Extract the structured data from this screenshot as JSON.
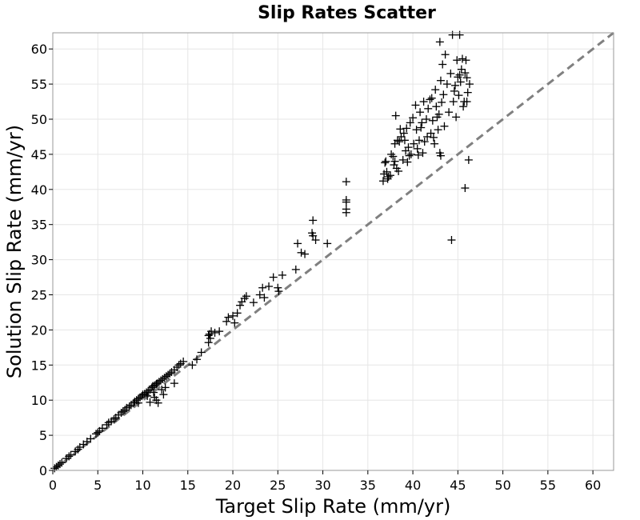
{
  "chart_data": {
    "type": "scatter",
    "title": "Slip Rates Scatter",
    "xlabel": "Target Slip Rate (mm/yr)",
    "ylabel": "Solution Slip Rate (mm/yr)",
    "xlim": [
      0,
      62.3
    ],
    "ylim": [
      0,
      62.3
    ],
    "xticks": [
      0,
      5,
      10,
      15,
      20,
      25,
      30,
      35,
      40,
      45,
      50,
      55,
      60
    ],
    "yticks": [
      0,
      5,
      10,
      15,
      20,
      25,
      30,
      35,
      40,
      45,
      50,
      55,
      60
    ],
    "grid": true,
    "marker": "+",
    "marker_color": "#000000",
    "reference_line": {
      "style": "dashed",
      "color": "#808080",
      "from": [
        0,
        0
      ],
      "to": [
        62.3,
        62.3
      ]
    },
    "points": [
      [
        0.2,
        0.3
      ],
      [
        0.4,
        0.5
      ],
      [
        0.6,
        0.7
      ],
      [
        0.8,
        0.9
      ],
      [
        1.0,
        1.1
      ],
      [
        1.5,
        1.7
      ],
      [
        1.8,
        2.0
      ],
      [
        2.0,
        2.2
      ],
      [
        2.5,
        2.7
      ],
      [
        2.8,
        3.0
      ],
      [
        3.0,
        3.3
      ],
      [
        3.4,
        3.7
      ],
      [
        3.8,
        4.1
      ],
      [
        4.2,
        4.5
      ],
      [
        4.8,
        5.2
      ],
      [
        5.0,
        5.4
      ],
      [
        5.2,
        5.6
      ],
      [
        5.5,
        6.0
      ],
      [
        6.0,
        6.5
      ],
      [
        6.2,
        6.8
      ],
      [
        6.5,
        7.0
      ],
      [
        6.8,
        7.3
      ],
      [
        7.0,
        7.5
      ],
      [
        7.3,
        7.9
      ],
      [
        7.6,
        8.2
      ],
      [
        7.8,
        8.4
      ],
      [
        8.0,
        8.6
      ],
      [
        8.2,
        8.9
      ],
      [
        8.5,
        9.1
      ],
      [
        8.7,
        9.3
      ],
      [
        9.0,
        9.6
      ],
      [
        9.1,
        9.8
      ],
      [
        9.3,
        10.0
      ],
      [
        9.5,
        10.2
      ],
      [
        9.7,
        10.4
      ],
      [
        9.9,
        10.6
      ],
      [
        10.0,
        10.8
      ],
      [
        10.2,
        10.9
      ],
      [
        10.4,
        11.1
      ],
      [
        10.6,
        11.3
      ],
      [
        10.8,
        11.5
      ],
      [
        11.0,
        11.8
      ],
      [
        11.1,
        12.0
      ],
      [
        11.3,
        12.1
      ],
      [
        11.5,
        12.3
      ],
      [
        11.6,
        12.4
      ],
      [
        11.8,
        12.6
      ],
      [
        12.0,
        12.8
      ],
      [
        12.2,
        13.0
      ],
      [
        12.4,
        13.2
      ],
      [
        12.6,
        13.4
      ],
      [
        12.8,
        13.6
      ],
      [
        13.0,
        13.8
      ],
      [
        13.2,
        14.0
      ],
      [
        13.5,
        14.3
      ],
      [
        13.8,
        14.7
      ],
      [
        14.0,
        15.0
      ],
      [
        14.2,
        15.2
      ],
      [
        14.5,
        15.5
      ],
      [
        10.5,
        10.6
      ],
      [
        11.2,
        11.1
      ],
      [
        11.5,
        10.0
      ],
      [
        12.5,
        11.8
      ],
      [
        13.5,
        12.4
      ],
      [
        9.5,
        9.6
      ],
      [
        10.8,
        9.7
      ],
      [
        11.7,
        9.6
      ],
      [
        12.3,
        10.8
      ],
      [
        12.1,
        11.5
      ],
      [
        11.3,
        10.4
      ],
      [
        15.5,
        15.0
      ],
      [
        16.0,
        15.8
      ],
      [
        16.5,
        16.8
      ],
      [
        17.3,
        18.2
      ],
      [
        17.5,
        18.8
      ],
      [
        17.4,
        19.4
      ],
      [
        17.6,
        19.8
      ],
      [
        18.0,
        19.6
      ],
      [
        17.3,
        19.2
      ],
      [
        18.5,
        19.8
      ],
      [
        19.3,
        21.2
      ],
      [
        19.5,
        21.8
      ],
      [
        20.0,
        22.0
      ],
      [
        20.2,
        21.0
      ],
      [
        20.5,
        22.4
      ],
      [
        20.8,
        23.5
      ],
      [
        21.0,
        24.0
      ],
      [
        21.3,
        24.5
      ],
      [
        21.5,
        24.8
      ],
      [
        22.3,
        23.9
      ],
      [
        23.0,
        25.0
      ],
      [
        23.3,
        26.0
      ],
      [
        23.5,
        24.6
      ],
      [
        24.0,
        26.2
      ],
      [
        24.5,
        27.5
      ],
      [
        25.0,
        26.0
      ],
      [
        25.1,
        25.5
      ],
      [
        25.5,
        27.8
      ],
      [
        27.0,
        28.6
      ],
      [
        27.2,
        32.3
      ],
      [
        27.6,
        31.0
      ],
      [
        28.0,
        30.8
      ],
      [
        28.8,
        33.8
      ],
      [
        28.9,
        35.6
      ],
      [
        28.9,
        33.4
      ],
      [
        29.2,
        32.8
      ],
      [
        30.5,
        32.3
      ],
      [
        32.6,
        41.1
      ],
      [
        32.6,
        38.5
      ],
      [
        32.6,
        38.2
      ],
      [
        32.6,
        36.7
      ],
      [
        32.6,
        37.2
      ],
      [
        36.7,
        41.2
      ],
      [
        36.8,
        42.2
      ],
      [
        36.9,
        43.8
      ],
      [
        37.0,
        44.0
      ],
      [
        37.1,
        42.5
      ],
      [
        37.3,
        41.8
      ],
      [
        37.5,
        42.0
      ],
      [
        37.6,
        45.0
      ],
      [
        37.8,
        44.7
      ],
      [
        37.9,
        43.5
      ],
      [
        38.0,
        46.5
      ],
      [
        38.0,
        44.0
      ],
      [
        38.1,
        50.5
      ],
      [
        38.2,
        43.0
      ],
      [
        38.3,
        47.0
      ],
      [
        38.5,
        46.8
      ],
      [
        38.6,
        48.6
      ],
      [
        38.7,
        47.5
      ],
      [
        38.9,
        44.2
      ],
      [
        39.0,
        48.0
      ],
      [
        39.1,
        47.0
      ],
      [
        39.2,
        45.5
      ],
      [
        39.3,
        48.7
      ],
      [
        39.5,
        46.0
      ],
      [
        39.6,
        44.8
      ],
      [
        39.7,
        49.5
      ],
      [
        39.8,
        45.0
      ],
      [
        40.0,
        50.2
      ],
      [
        40.1,
        46.5
      ],
      [
        40.3,
        52.0
      ],
      [
        40.4,
        48.5
      ],
      [
        40.5,
        45.8
      ],
      [
        40.7,
        47.0
      ],
      [
        40.8,
        51.0
      ],
      [
        40.9,
        48.8
      ],
      [
        41.0,
        49.5
      ],
      [
        41.2,
        52.5
      ],
      [
        41.3,
        46.8
      ],
      [
        41.5,
        50.0
      ],
      [
        41.6,
        47.5
      ],
      [
        41.7,
        51.5
      ],
      [
        41.9,
        52.8
      ],
      [
        42.0,
        48.0
      ],
      [
        42.1,
        53.0
      ],
      [
        42.2,
        49.8
      ],
      [
        42.4,
        46.5
      ],
      [
        42.5,
        54.2
      ],
      [
        42.6,
        51.8
      ],
      [
        42.7,
        50.3
      ],
      [
        42.8,
        48.5
      ],
      [
        43.0,
        61.0
      ],
      [
        43.1,
        55.5
      ],
      [
        43.2,
        52.4
      ],
      [
        43.3,
        57.8
      ],
      [
        43.4,
        53.5
      ],
      [
        43.5,
        49.0
      ],
      [
        43.6,
        59.2
      ],
      [
        43.0,
        45.2
      ],
      [
        43.1,
        44.8
      ],
      [
        43.8,
        55.0
      ],
      [
        44.0,
        51.0
      ],
      [
        44.2,
        56.5
      ],
      [
        44.3,
        32.8
      ],
      [
        44.4,
        62.0
      ],
      [
        44.5,
        52.5
      ],
      [
        44.6,
        54.0
      ],
      [
        44.8,
        50.3
      ],
      [
        44.9,
        58.4
      ],
      [
        45.0,
        56.0
      ],
      [
        45.1,
        53.4
      ],
      [
        45.2,
        62.0
      ],
      [
        45.3,
        55.3
      ],
      [
        45.4,
        57.1
      ],
      [
        45.5,
        58.6
      ],
      [
        45.6,
        51.8
      ],
      [
        45.7,
        52.5
      ],
      [
        45.8,
        40.2
      ],
      [
        45.8,
        56.6
      ],
      [
        45.9,
        58.4
      ],
      [
        46.0,
        52.5
      ],
      [
        46.0,
        55.9
      ],
      [
        46.2,
        44.2
      ],
      [
        46.3,
        55.0
      ],
      [
        46.1,
        53.8
      ],
      [
        45.2,
        56.3
      ],
      [
        44.7,
        54.8
      ],
      [
        42.9,
        50.7
      ],
      [
        42.3,
        47.4
      ],
      [
        39.4,
        43.9
      ],
      [
        38.4,
        42.6
      ],
      [
        37.2,
        41.5
      ],
      [
        41.1,
        45.2
      ],
      [
        40.6,
        44.9
      ]
    ]
  }
}
